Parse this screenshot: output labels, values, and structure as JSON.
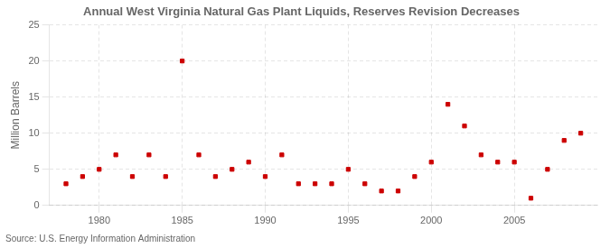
{
  "chart_data": {
    "type": "scatter",
    "title": "Annual West Virginia Natural Gas Plant Liquids, Reserves Revision Decreases",
    "ylabel": "Million Barrels",
    "annotation": "Source: U.S. Energy Information Administration",
    "x": [
      1978,
      1979,
      1980,
      1981,
      1982,
      1983,
      1984,
      1985,
      1986,
      1987,
      1988,
      1989,
      1990,
      1991,
      1992,
      1993,
      1994,
      1995,
      1996,
      1997,
      1998,
      1999,
      2000,
      2001,
      2002,
      2003,
      2004,
      2005,
      2006,
      2007,
      2008,
      2009
    ],
    "values": [
      3.0,
      4.0,
      5.0,
      7.0,
      4.0,
      7.0,
      4.0,
      20.0,
      7.0,
      4.0,
      5.0,
      6.0,
      4.0,
      7.0,
      3.0,
      3.0,
      3.0,
      5.0,
      3.0,
      2.0,
      2.0,
      4.0,
      6.0,
      14.0,
      11.0,
      7.0,
      6.0,
      6.0,
      1.0,
      5.0,
      9.0,
      10.0
    ],
    "color": "#cc0000",
    "marker": "square",
    "xlim": [
      1977,
      2010
    ],
    "ylim": [
      0,
      25
    ],
    "xticks": [
      1980,
      1985,
      1990,
      1995,
      2000,
      2005
    ],
    "yticks": [
      0,
      5,
      10,
      15,
      20,
      25
    ],
    "grid": true
  }
}
